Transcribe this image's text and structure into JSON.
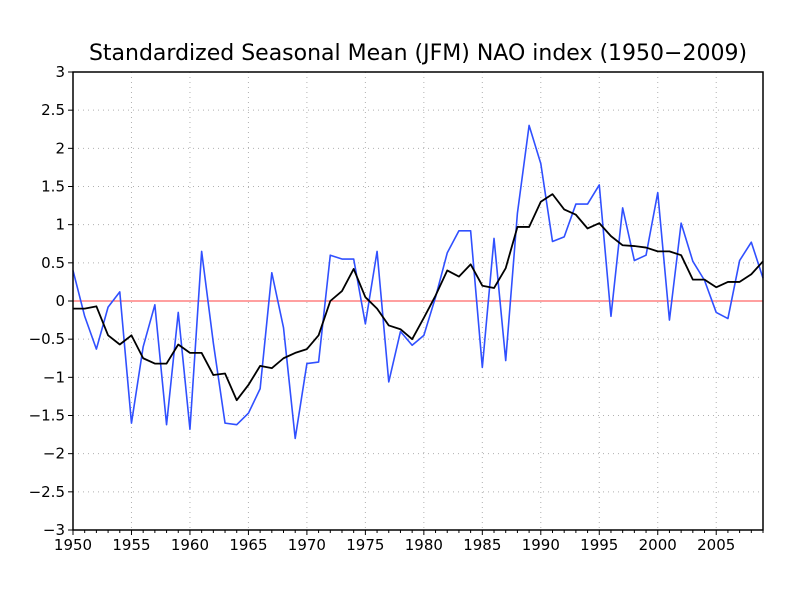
{
  "chart_data": {
    "type": "line",
    "title": "Standardized Seasonal Mean (JFM) NAO index (1950−2009)",
    "xlabel": "",
    "ylabel": "",
    "xlim": [
      1950,
      2009
    ],
    "ylim": [
      -3,
      3
    ],
    "xticks": [
      1950,
      1955,
      1960,
      1965,
      1970,
      1975,
      1980,
      1985,
      1990,
      1995,
      2000,
      2005
    ],
    "yticks": [
      -3,
      -2.5,
      -2,
      -1.5,
      -1,
      -0.5,
      0,
      0.5,
      1,
      1.5,
      2,
      2.5,
      3
    ],
    "ytick_labels": [
      "−3",
      "−2.5",
      "−2",
      "−1.5",
      "−1",
      "−0.5",
      "0",
      "0.5",
      "1",
      "1.5",
      "2",
      "2.5",
      "3"
    ],
    "grid": true,
    "zero_line_color": "#ff4040",
    "x": [
      1950,
      1951,
      1952,
      1953,
      1954,
      1955,
      1956,
      1957,
      1958,
      1959,
      1960,
      1961,
      1962,
      1963,
      1964,
      1965,
      1966,
      1967,
      1968,
      1969,
      1970,
      1971,
      1972,
      1973,
      1974,
      1975,
      1976,
      1977,
      1978,
      1979,
      1980,
      1981,
      1982,
      1983,
      1984,
      1985,
      1986,
      1987,
      1988,
      1989,
      1990,
      1991,
      1992,
      1993,
      1994,
      1995,
      1996,
      1997,
      1998,
      1999,
      2000,
      2001,
      2002,
      2003,
      2004,
      2005,
      2006,
      2007,
      2008,
      2009
    ],
    "series": [
      {
        "color": "#3050ff",
        "values": [
          0.4,
          -0.2,
          -0.63,
          -0.08,
          0.12,
          -1.6,
          -0.6,
          -0.05,
          -1.62,
          -0.15,
          -1.68,
          0.65,
          -0.55,
          -1.6,
          -1.62,
          -1.47,
          -1.15,
          0.37,
          -0.35,
          -1.8,
          -0.82,
          -0.8,
          0.6,
          0.55,
          0.55,
          -0.3,
          0.65,
          -1.06,
          -0.4,
          -0.58,
          -0.45,
          0.05,
          0.63,
          0.92,
          0.92,
          -0.87,
          0.82,
          -0.78,
          1.15,
          2.3,
          1.8,
          0.78,
          0.84,
          1.27,
          1.27,
          1.52,
          -0.2,
          1.22,
          0.53,
          0.6,
          1.42,
          -0.25,
          1.02,
          0.52,
          0.27,
          -0.15,
          -0.23,
          0.53,
          0.77,
          0.3
        ]
      },
      {
        "color": "#000000",
        "values": [
          -0.1,
          -0.1,
          -0.07,
          -0.45,
          -0.57,
          -0.45,
          -0.75,
          -0.82,
          -0.82,
          -0.57,
          -0.68,
          -0.68,
          -0.97,
          -0.95,
          -1.3,
          -1.1,
          -0.85,
          -0.88,
          -0.75,
          -0.68,
          -0.63,
          -0.45,
          0.0,
          0.13,
          0.42,
          0.05,
          -0.1,
          -0.32,
          -0.37,
          -0.5,
          -0.22,
          0.07,
          0.4,
          0.32,
          0.48,
          0.2,
          0.17,
          0.43,
          0.97,
          0.97,
          1.3,
          1.4,
          1.2,
          1.13,
          0.95,
          1.02,
          0.85,
          0.73,
          0.72,
          0.7,
          0.65,
          0.65,
          0.6,
          0.28,
          0.28,
          0.18,
          0.25,
          0.25,
          0.35,
          0.52
        ]
      }
    ]
  }
}
